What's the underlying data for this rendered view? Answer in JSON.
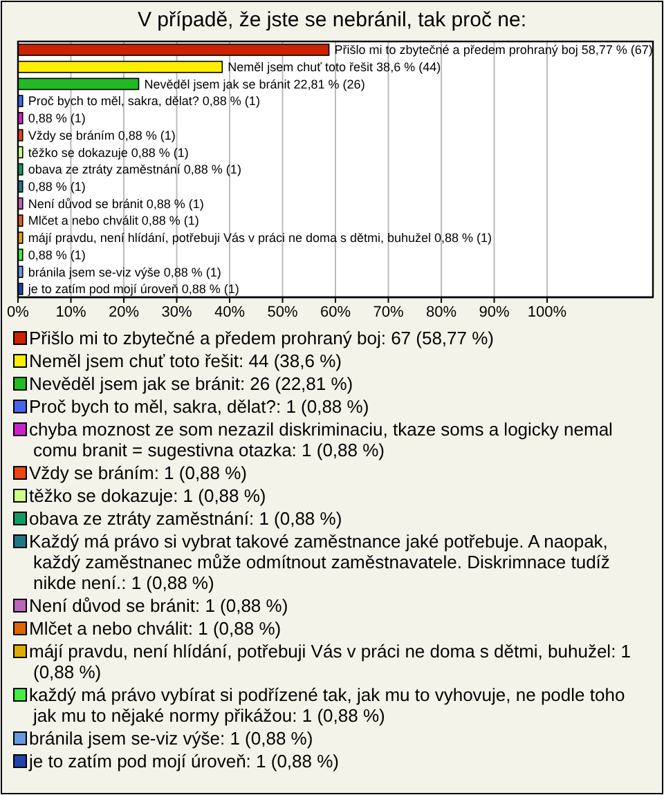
{
  "chart_data": {
    "type": "bar",
    "orientation": "horizontal",
    "title": "V případě, že jste se nebránil, tak proč ne:",
    "categories": [
      null,
      null,
      null,
      null,
      null,
      null,
      null,
      null,
      null,
      null,
      null,
      null,
      null,
      null,
      null
    ],
    "series": [
      {
        "name": "Přišlo mi to zbytečné a předem prohraný boj: 67 (58,77 %)",
        "color": "#cc2200",
        "values": [
          58.77,
          null,
          null,
          null,
          null,
          null,
          null,
          null,
          null,
          null,
          null,
          null,
          null,
          null,
          null
        ],
        "value_labels": [
          "Přišlo mi to zbytečné a předem prohraný boj 58,77 % (67)",
          null,
          null,
          null,
          null,
          null,
          null,
          null,
          null,
          null,
          null,
          null,
          null,
          null,
          null
        ]
      },
      {
        "name": "Neměl jsem chuť toto řešit: 44 (38,6 %)",
        "color": "#ffee00",
        "values": [
          null,
          38.6,
          null,
          null,
          null,
          null,
          null,
          null,
          null,
          null,
          null,
          null,
          null,
          null,
          null
        ],
        "value_labels": [
          null,
          "Neměl jsem chuť toto řešit 38,6 % (44)",
          null,
          null,
          null,
          null,
          null,
          null,
          null,
          null,
          null,
          null,
          null,
          null,
          null
        ]
      },
      {
        "name": "Nevěděl jsem jak se bránit: 26 (22,81 %)",
        "color": "#22bb22",
        "values": [
          null,
          null,
          22.81,
          null,
          null,
          null,
          null,
          null,
          null,
          null,
          null,
          null,
          null,
          null,
          null
        ],
        "value_labels": [
          null,
          null,
          "Nevěděl jsem jak se bránit 22,81 % (26)",
          null,
          null,
          null,
          null,
          null,
          null,
          null,
          null,
          null,
          null,
          null,
          null
        ]
      },
      {
        "name": "Proč bych to měl, sakra, dělat?: 1 (0,88 %)",
        "color": "#4466ee",
        "values": [
          null,
          null,
          null,
          0.88,
          null,
          null,
          null,
          null,
          null,
          null,
          null,
          null,
          null,
          null,
          null
        ],
        "value_labels": [
          null,
          null,
          null,
          "Proč bych to měl, sakra, dělat? 0,88 % (1)",
          null,
          null,
          null,
          null,
          null,
          null,
          null,
          null,
          null,
          null,
          null
        ]
      },
      {
        "name": "chyba moznost ze som nezazil diskriminaciu, tkaze soms a logicky nemal comu branit = sugestivna otazka: 1 (0,88 %)",
        "color": "#cc22cc",
        "values": [
          null,
          null,
          null,
          null,
          0.88,
          null,
          null,
          null,
          null,
          null,
          null,
          null,
          null,
          null,
          null
        ],
        "value_labels": [
          null,
          null,
          null,
          null,
          "0,88 % (1)",
          null,
          null,
          null,
          null,
          null,
          null,
          null,
          null,
          null,
          null
        ]
      },
      {
        "name": "Vždy se bráním: 1 (0,88 %)",
        "color": "#ee4411",
        "values": [
          null,
          null,
          null,
          null,
          null,
          0.88,
          null,
          null,
          null,
          null,
          null,
          null,
          null,
          null,
          null
        ],
        "value_labels": [
          null,
          null,
          null,
          null,
          null,
          "Vždy se bráním 0,88 % (1)",
          null,
          null,
          null,
          null,
          null,
          null,
          null,
          null,
          null
        ]
      },
      {
        "name": "těžko se dokazuje: 1 (0,88 %)",
        "color": "#ccff88",
        "values": [
          null,
          null,
          null,
          null,
          null,
          null,
          0.88,
          null,
          null,
          null,
          null,
          null,
          null,
          null,
          null
        ],
        "value_labels": [
          null,
          null,
          null,
          null,
          null,
          null,
          "těžko se dokazuje 0,88 % (1)",
          null,
          null,
          null,
          null,
          null,
          null,
          null,
          null
        ]
      },
      {
        "name": "obava ze ztráty zaměstnání: 1 (0,88 %)",
        "color": "#119966",
        "values": [
          null,
          null,
          null,
          null,
          null,
          null,
          null,
          0.88,
          null,
          null,
          null,
          null,
          null,
          null,
          null
        ],
        "value_labels": [
          null,
          null,
          null,
          null,
          null,
          null,
          null,
          "obava ze ztráty zaměstnání 0,88 % (1)",
          null,
          null,
          null,
          null,
          null,
          null,
          null
        ]
      },
      {
        "name": "Každý má právo si vybrat takové zaměstnance jaké potřebuje. A naopak, každý zaměstnanec může odmítnout zaměstnavatele. Diskrimnace tudíž nikde není.: 1 (0,88 %)",
        "color": "#227788",
        "values": [
          null,
          null,
          null,
          null,
          null,
          null,
          null,
          null,
          0.88,
          null,
          null,
          null,
          null,
          null,
          null
        ],
        "value_labels": [
          null,
          null,
          null,
          null,
          null,
          null,
          null,
          null,
          "0,88 % (1)",
          null,
          null,
          null,
          null,
          null,
          null
        ]
      },
      {
        "name": "Není důvod se bránit: 1 (0,88 %)",
        "color": "#bb66bb",
        "values": [
          null,
          null,
          null,
          null,
          null,
          null,
          null,
          null,
          null,
          0.88,
          null,
          null,
          null,
          null,
          null
        ],
        "value_labels": [
          null,
          null,
          null,
          null,
          null,
          null,
          null,
          null,
          null,
          "Není důvod se bránit 0,88 % (1)",
          null,
          null,
          null,
          null,
          null
        ]
      },
      {
        "name": "Mlčet a nebo chválit: 1 (0,88 %)",
        "color": "#dd6600",
        "values": [
          null,
          null,
          null,
          null,
          null,
          null,
          null,
          null,
          null,
          null,
          0.88,
          null,
          null,
          null,
          null
        ],
        "value_labels": [
          null,
          null,
          null,
          null,
          null,
          null,
          null,
          null,
          null,
          null,
          "Mlčet a nebo chválit 0,88 % (1)",
          null,
          null,
          null,
          null
        ]
      },
      {
        "name": "májí pravdu, není hlídání, potřebuji Vás v práci ne doma s dětmi, buhužel: 1 (0,88 %)",
        "color": "#ddaa00",
        "values": [
          null,
          null,
          null,
          null,
          null,
          null,
          null,
          null,
          null,
          null,
          null,
          0.88,
          null,
          null,
          null
        ],
        "value_labels": [
          null,
          null,
          null,
          null,
          null,
          null,
          null,
          null,
          null,
          null,
          null,
          "májí pravdu, není hlídání, potřebuji Vás v práci ne doma s dětmi, buhužel 0,88 % (1)",
          null,
          null,
          null
        ]
      },
      {
        "name": "každý má právo vybírat si podřízené tak, jak mu to vyhovuje, ne podle toho jak mu to nějaké normy přikážou: 1 (0,88 %)",
        "color": "#44ee44",
        "values": [
          null,
          null,
          null,
          null,
          null,
          null,
          null,
          null,
          null,
          null,
          null,
          null,
          0.88,
          null,
          null
        ],
        "value_labels": [
          null,
          null,
          null,
          null,
          null,
          null,
          null,
          null,
          null,
          null,
          null,
          null,
          "0,88 % (1)",
          null,
          null
        ]
      },
      {
        "name": "bránila jsem se-viz výše: 1 (0,88 %)",
        "color": "#6699dd",
        "values": [
          null,
          null,
          null,
          null,
          null,
          null,
          null,
          null,
          null,
          null,
          null,
          null,
          null,
          0.88,
          null
        ],
        "value_labels": [
          null,
          null,
          null,
          null,
          null,
          null,
          null,
          null,
          null,
          null,
          null,
          null,
          null,
          "bránila jsem se-viz výše 0,88 % (1)",
          null
        ]
      },
      {
        "name": "je to zatím pod mojí úroveň: 1 (0,88 %)",
        "color": "#2244aa",
        "values": [
          null,
          null,
          null,
          null,
          null,
          null,
          null,
          null,
          null,
          null,
          null,
          null,
          null,
          null,
          0.88
        ],
        "value_labels": [
          null,
          null,
          null,
          null,
          null,
          null,
          null,
          null,
          null,
          null,
          null,
          null,
          null,
          null,
          "je to zatím pod mojí úroveň 0,88 % (1)"
        ]
      }
    ],
    "xlim": [
      0,
      120
    ],
    "xticks": [
      {
        "value": 0,
        "label": "0%"
      },
      {
        "value": 10,
        "label": "10%"
      },
      {
        "value": 20,
        "label": "20%"
      },
      {
        "value": 30,
        "label": "30%"
      },
      {
        "value": 40,
        "label": "40%"
      },
      {
        "value": 50,
        "label": "50%"
      },
      {
        "value": 60,
        "label": "60%"
      },
      {
        "value": 70,
        "label": "70%"
      },
      {
        "value": 80,
        "label": "80%"
      },
      {
        "value": 90,
        "label": "90%"
      },
      {
        "value": 100,
        "label": "100%"
      }
    ],
    "tick_labels": "x",
    "grid": "x",
    "legend": "bottom"
  }
}
